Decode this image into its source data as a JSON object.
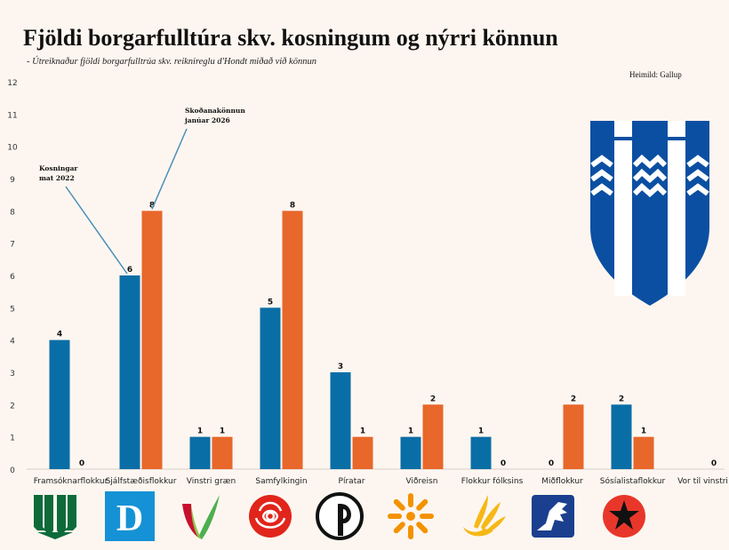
{
  "chart_data": {
    "type": "bar",
    "title": "Fjöldi borgarfulltúra skv. kosningum og nýrri könnun",
    "subtitle": "- Útreiknaður fjöldi borgarfulltrúa skv. reiknireglu d'Hondt miðað við könnun",
    "source": "Heimild: Gallup",
    "ylim": [
      0,
      12
    ],
    "yticks": [
      "0",
      "1",
      "2",
      "3",
      "4",
      "5",
      "6",
      "7",
      "8",
      "9",
      "10",
      "11",
      "12"
    ],
    "grid": false,
    "categories": [
      "Framsóknarflokkur",
      "Sjálfstæðisflokkur",
      "Vinstri græn",
      "Samfylkingin",
      "Píratar",
      "Viðreisn",
      "Flokkur fólksins",
      "Miðflokkur",
      "Sósíalistaflokkur",
      "Vor til vinstri"
    ],
    "series": [
      {
        "name": "Kosningar mat 2022",
        "color": "#0a6ea6",
        "values": [
          4,
          6,
          1,
          5,
          3,
          1,
          1,
          0,
          2,
          null
        ]
      },
      {
        "name": "Skoðanakönnun janúar 2026",
        "color": "#e8672a",
        "values": [
          0,
          8,
          1,
          8,
          1,
          2,
          0,
          2,
          1,
          0
        ]
      }
    ],
    "annotations": [
      {
        "series": 0,
        "line1": "Kosningar",
        "line2": "mat 2022"
      },
      {
        "series": 1,
        "line1": "Skoðanakönnun",
        "line2": "janúar 2026"
      }
    ]
  },
  "colors": {
    "blue": "#0a6ea6",
    "orange": "#e8672a",
    "background": "#fdf6f0",
    "crest_blue": "#0b4fa2"
  },
  "logos": {
    "crest": "reykjavik-crest",
    "party_icons": [
      "framsokn-logo",
      "sjalfstaedis-logo",
      "vinstri-graen-logo",
      "samfylkingin-logo",
      "piratar-logo",
      "vidreisn-logo",
      "flokkur-folksins-logo",
      "midflokkur-logo",
      "sosialista-logo"
    ],
    "sjalfstaedis_letter": "D"
  }
}
